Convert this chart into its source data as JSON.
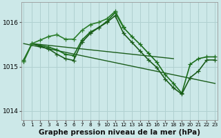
{
  "background_color": "#cce8e8",
  "grid_color": "#b0d0d0",
  "xlabel": "Graphe pression niveau de la mer (hPa)",
  "xlabel_fontsize": 7.5,
  "ylim": [
    1013.8,
    1016.45
  ],
  "xlim": [
    -0.3,
    23.3
  ],
  "yticks": [
    1014,
    1015,
    1016
  ],
  "ytick_labels": [
    "1014",
    "1015",
    "1016"
  ],
  "xticks": [
    0,
    1,
    2,
    3,
    4,
    5,
    6,
    7,
    8,
    9,
    10,
    11,
    12,
    13,
    14,
    15,
    16,
    17,
    18,
    19,
    20,
    21,
    22,
    23
  ],
  "series": [
    {
      "x": [
        0,
        1,
        2,
        3,
        4,
        5,
        6,
        7,
        8,
        9,
        10,
        11,
        12,
        13,
        14,
        15,
        16,
        17,
        18
      ],
      "y": [
        1015.15,
        1015.52,
        1015.5,
        1015.48,
        1015.46,
        1015.44,
        1015.42,
        1015.4,
        1015.38,
        1015.36,
        1015.34,
        1015.32,
        1015.3,
        1015.28,
        1015.26,
        1015.24,
        1015.22,
        1015.2,
        1015.18
      ],
      "color": "#1a5c1a",
      "linewidth": 1.0,
      "marker": null
    },
    {
      "x": [
        0,
        1,
        2,
        3,
        4,
        5,
        6,
        7,
        8,
        9,
        10,
        11,
        12,
        13,
        14,
        15,
        16,
        17,
        18,
        19,
        20,
        21,
        22,
        23
      ],
      "y": [
        1015.15,
        1015.52,
        1015.48,
        1015.44,
        1015.38,
        1015.28,
        1015.25,
        1015.6,
        1015.78,
        1015.88,
        1016.02,
        1016.22,
        1015.88,
        1015.68,
        1015.5,
        1015.3,
        1015.1,
        1014.82,
        1014.62,
        1014.4,
        1015.05,
        1015.18,
        1015.22,
        1015.22
      ],
      "color": "#1a6c1a",
      "linewidth": 1.2,
      "marker": "+",
      "markersize": 4
    },
    {
      "x": [
        0,
        23
      ],
      "y": [
        1015.52,
        1014.62
      ],
      "color": "#1a5c1a",
      "linewidth": 1.0,
      "marker": null
    },
    {
      "x": [
        0,
        1,
        2,
        3,
        4,
        5,
        6,
        7,
        8,
        9,
        10,
        11,
        12,
        13,
        14,
        15,
        16,
        17,
        18,
        19,
        20,
        21,
        22,
        23
      ],
      "y": [
        1015.12,
        1015.52,
        1015.46,
        1015.4,
        1015.28,
        1015.18,
        1015.14,
        1015.55,
        1015.75,
        1015.88,
        1016.0,
        1016.15,
        1015.75,
        1015.55,
        1015.35,
        1015.15,
        1014.98,
        1014.72,
        1014.52,
        1014.38,
        1014.75,
        1014.9,
        1015.15,
        1015.15
      ],
      "color": "#1a5c1a",
      "linewidth": 1.2,
      "marker": "+",
      "markersize": 4
    },
    {
      "x": [
        0,
        1,
        2,
        3,
        4,
        5,
        6,
        7,
        8,
        9,
        10,
        11,
        12
      ],
      "y": [
        1015.12,
        1015.52,
        1015.6,
        1015.68,
        1015.72,
        1015.62,
        1015.62,
        1015.82,
        1015.95,
        1016.0,
        1016.08,
        1016.25,
        1015.9
      ],
      "color": "#2a7c2a",
      "linewidth": 1.2,
      "marker": "+",
      "markersize": 4
    }
  ]
}
